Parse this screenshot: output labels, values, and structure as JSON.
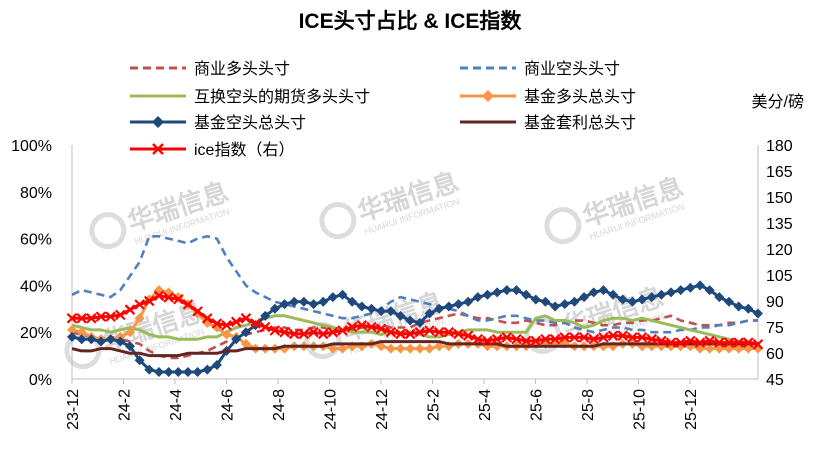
{
  "chart_data": {
    "type": "line",
    "title": "ICE头寸占比 & ICE指数",
    "right_axis_unit": "美分/磅",
    "x_tick_labels": [
      "23-12",
      "24-2",
      "24-4",
      "24-6",
      "24-8",
      "24-10",
      "24-12",
      "25-2",
      "25-4",
      "25-6",
      "25-8",
      "25-10",
      "25-12"
    ],
    "left_axis": {
      "min": 0,
      "max": 100,
      "ticks": [
        "0%",
        "20%",
        "40%",
        "60%",
        "80%",
        "100%"
      ]
    },
    "right_axis": {
      "min": 45,
      "max": 180,
      "ticks": [
        "45",
        "60",
        "75",
        "90",
        "105",
        "120",
        "135",
        "150",
        "165",
        "180"
      ]
    },
    "grid": false,
    "legend": "top, two columns",
    "series": [
      {
        "name": "商业多头头寸",
        "color": "#c0504d",
        "style": "dash",
        "axis": "left",
        "values": [
          20,
          19,
          18,
          17,
          18,
          17,
          16,
          15,
          12,
          10,
          9,
          9,
          10,
          11,
          12,
          14,
          16,
          18,
          19,
          20,
          21,
          22,
          22,
          21,
          21,
          22,
          22,
          21,
          21,
          21,
          22,
          22,
          23,
          22,
          22,
          22,
          24,
          25,
          26,
          27,
          28,
          27,
          26,
          26,
          25,
          24,
          24,
          25,
          24,
          23,
          23,
          24,
          25,
          25,
          24,
          23,
          23,
          24,
          24,
          25,
          25,
          26,
          27,
          25,
          24,
          23,
          23,
          23,
          24,
          24,
          25,
          25
        ]
      },
      {
        "name": "商业空头头寸",
        "color": "#4f81bd",
        "style": "dash",
        "axis": "left",
        "values": [
          36,
          38,
          37,
          36,
          35,
          38,
          44,
          50,
          61,
          61,
          60,
          59,
          58,
          60,
          61,
          60,
          52,
          46,
          40,
          37,
          35,
          33,
          32,
          31,
          30,
          29,
          28,
          27,
          26,
          26,
          27,
          28,
          30,
          33,
          35,
          34,
          33,
          32,
          31,
          30,
          29,
          27,
          25,
          25,
          26,
          27,
          27,
          26,
          25,
          25,
          24,
          24,
          22,
          21,
          20,
          21,
          22,
          22,
          21,
          21,
          20,
          20,
          20,
          21,
          21,
          22,
          22,
          23,
          23,
          24,
          25,
          25
        ]
      },
      {
        "name": "互换空头的期货多头头寸",
        "color": "#9bbb59",
        "style": "solid",
        "axis": "left",
        "values": [
          23,
          22,
          21,
          21,
          20,
          21,
          22,
          21,
          19,
          18,
          18,
          17,
          17,
          17,
          18,
          18,
          20,
          22,
          23,
          24,
          26,
          27,
          27,
          26,
          25,
          24,
          23,
          22,
          21,
          20,
          20,
          20,
          19,
          20,
          20,
          20,
          19,
          18,
          18,
          19,
          20,
          21,
          21,
          21,
          20,
          20,
          20,
          20,
          26,
          27,
          25,
          25,
          24,
          22,
          23,
          25,
          26,
          26,
          25,
          26,
          25,
          24,
          23,
          22,
          21,
          20,
          19,
          18,
          17,
          16,
          16,
          15
        ]
      },
      {
        "name": "基金多头总头寸",
        "color": "#f79646",
        "style": "solid",
        "axis": "left",
        "marker": "diamond",
        "values": [
          21,
          20,
          18,
          17,
          17,
          18,
          20,
          26,
          34,
          38,
          37,
          35,
          32,
          28,
          24,
          22,
          19,
          18,
          15,
          13,
          13,
          13,
          13,
          14,
          14,
          14,
          14,
          13,
          13,
          14,
          14,
          15,
          14,
          13,
          13,
          13,
          13,
          13,
          14,
          14,
          15,
          15,
          15,
          14,
          14,
          14,
          14,
          14,
          15,
          15,
          15,
          15,
          14,
          14,
          14,
          14,
          14,
          15,
          15,
          14,
          14,
          14,
          14,
          14,
          14,
          13,
          13,
          13,
          13,
          13,
          13,
          13
        ]
      },
      {
        "name": "基金空头总头寸",
        "color": "#1f497d",
        "style": "solid",
        "axis": "left",
        "marker": "diamond",
        "values": [
          18,
          17,
          17,
          16,
          17,
          16,
          14,
          8,
          4,
          3,
          3,
          3,
          3,
          3,
          4,
          6,
          12,
          17,
          20,
          23,
          27,
          30,
          32,
          33,
          33,
          32,
          33,
          35,
          36,
          33,
          31,
          30,
          29,
          29,
          27,
          25,
          24,
          28,
          30,
          31,
          32,
          33,
          35,
          36,
          37,
          38,
          38,
          36,
          34,
          33,
          31,
          32,
          33,
          35,
          37,
          38,
          36,
          34,
          33,
          34,
          35,
          36,
          37,
          38,
          39,
          40,
          38,
          35,
          33,
          31,
          30,
          28
        ]
      },
      {
        "name": "基金套利总头寸",
        "color": "#632523",
        "style": "solid",
        "axis": "left",
        "values": [
          13,
          12,
          12,
          13,
          13,
          12,
          11,
          11,
          10,
          10,
          10,
          10,
          11,
          11,
          11,
          11,
          12,
          12,
          13,
          13,
          13,
          13,
          14,
          14,
          14,
          14,
          14,
          15,
          15,
          15,
          15,
          15,
          16,
          16,
          16,
          16,
          16,
          16,
          16,
          15,
          15,
          15,
          15,
          15,
          15,
          14,
          14,
          14,
          14,
          14,
          14,
          14,
          14,
          14,
          14,
          15,
          15,
          15,
          15,
          15,
          15,
          15,
          15,
          15,
          15,
          15,
          15,
          15,
          15,
          15,
          15,
          15
        ]
      },
      {
        "name": "ice指数（右）",
        "color": "#ff0000",
        "style": "solid",
        "axis": "right",
        "marker": "x",
        "values": [
          80,
          80,
          80,
          81,
          81,
          82,
          85,
          88,
          90,
          93,
          92,
          91,
          88,
          84,
          80,
          77,
          76,
          78,
          80,
          77,
          75,
          73,
          72,
          71,
          71,
          72,
          71,
          72,
          73,
          75,
          76,
          75,
          74,
          72,
          71,
          71,
          72,
          73,
          72,
          72,
          71,
          70,
          68,
          67,
          68,
          69,
          68,
          67,
          67,
          68,
          68,
          69,
          69,
          69,
          68,
          69,
          70,
          70,
          69,
          69,
          68,
          67,
          66,
          66,
          67,
          66,
          67,
          66,
          66,
          66,
          66,
          65
        ]
      }
    ]
  },
  "watermark": {
    "name": "华瑞信息",
    "sub": "HUARUI INFORMATION"
  }
}
